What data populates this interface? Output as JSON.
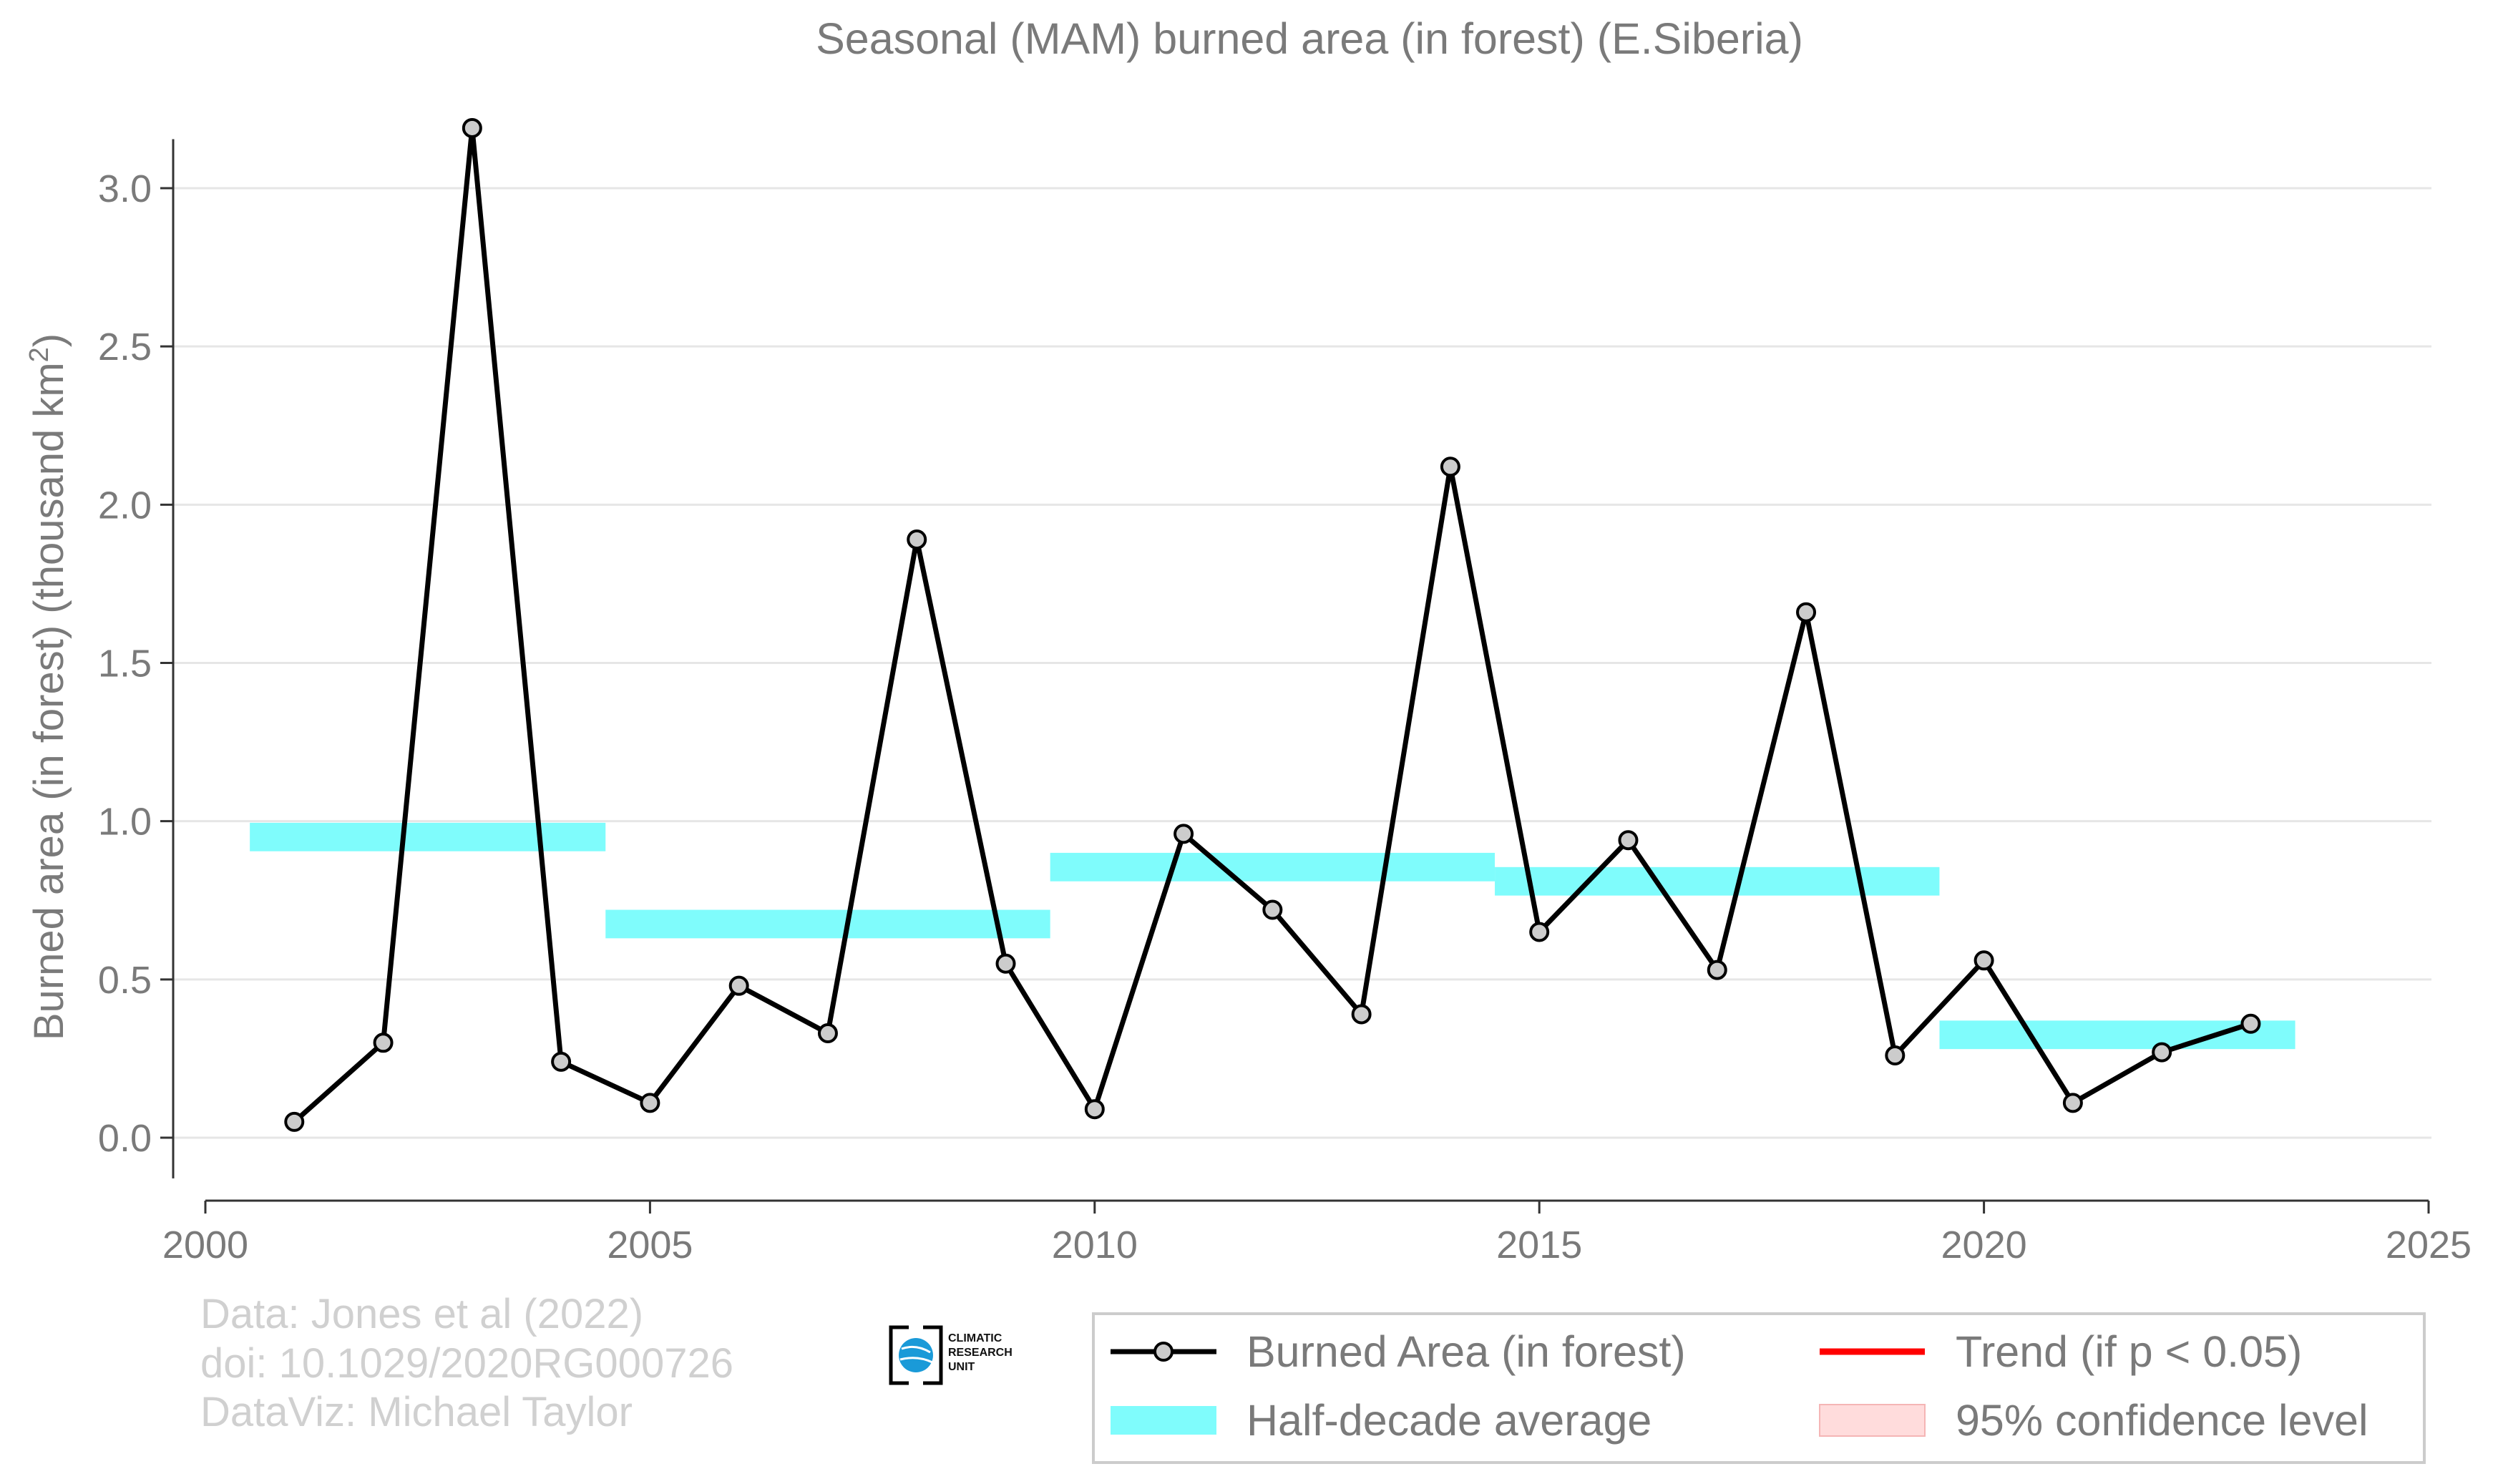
{
  "chart_data": {
    "type": "line",
    "title": "Seasonal (MAM) burned area (in forest) (E.Siberia)",
    "ylabel": "Burned area (in forest) (thousand km",
    "ylabel_sup": "2",
    "ylabel_close": ")",
    "xlim": [
      2000,
      2025
    ],
    "ylim": [
      -0.14,
      3.2
    ],
    "x_ticks": [
      2000,
      2005,
      2010,
      2015,
      2020,
      2025
    ],
    "y_ticks": [
      0.0,
      0.5,
      1.0,
      1.5,
      2.0,
      2.5,
      3.0
    ],
    "y_tick_labels": [
      "0.0",
      "0.5",
      "1.0",
      "1.5",
      "2.0",
      "2.5",
      "3.0"
    ],
    "grid": true,
    "series": [
      {
        "name": "Burned Area (in forest)",
        "color": "#000000",
        "marker_fill": "#cccccc",
        "x": [
          2001,
          2002,
          2003,
          2004,
          2005,
          2006,
          2007,
          2008,
          2009,
          2010,
          2011,
          2012,
          2013,
          2014,
          2015,
          2016,
          2017,
          2018,
          2019,
          2020,
          2021,
          2022,
          2023
        ],
        "y": [
          0.05,
          0.3,
          3.19,
          0.24,
          0.11,
          0.48,
          0.33,
          1.89,
          0.55,
          0.09,
          0.96,
          0.72,
          0.39,
          2.12,
          0.65,
          0.94,
          0.53,
          1.66,
          0.26,
          0.56,
          0.11,
          0.27,
          0.36
        ]
      }
    ],
    "half_decade_average": {
      "name": "Half-decade average",
      "color": "#7ffcfc",
      "band_halfwidth": 0.045,
      "segments": [
        {
          "x0": 2000.5,
          "x1": 2004.5,
          "y": 0.95
        },
        {
          "x0": 2004.5,
          "x1": 2009.5,
          "y": 0.675
        },
        {
          "x0": 2009.5,
          "x1": 2014.5,
          "y": 0.855
        },
        {
          "x0": 2014.5,
          "x1": 2019.5,
          "y": 0.81
        },
        {
          "x0": 2019.5,
          "x1": 2023.5,
          "y": 0.325
        }
      ]
    },
    "legend": {
      "placement": "bottom-right",
      "entries": [
        {
          "label": "Burned Area (in forest)",
          "kind": "line-marker",
          "color": "#000000"
        },
        {
          "label": "Half-decade average",
          "kind": "band",
          "color": "#7ffcfc"
        },
        {
          "label": "Trend (if p < 0.05)",
          "kind": "line",
          "color": "#ff0000"
        },
        {
          "label": "95% confidence level",
          "kind": "band",
          "color": "#ffdcdc"
        }
      ]
    }
  },
  "credits": {
    "line1": "Data: Jones et al (2022)",
    "line2": "doi: 10.1029/2020RG000726",
    "line3": "DataViz: Michael Taylor"
  },
  "logo": {
    "line1": "CLIMATIC",
    "line2": "RESEARCH",
    "line3": "UNIT",
    "color": "#1a9ad8"
  }
}
